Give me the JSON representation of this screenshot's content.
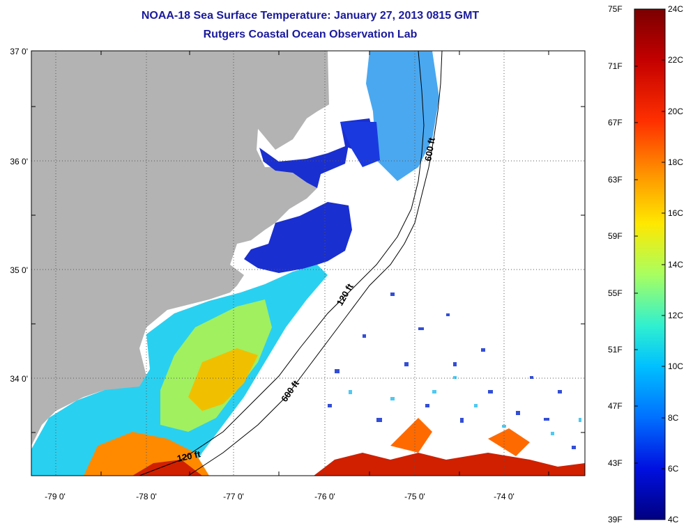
{
  "title": {
    "line1": "NOAA-18 Sea Surface Temperature:  January 27, 2013 0815 GMT",
    "line2": "Rutgers Coastal Ocean Observation Lab"
  },
  "map": {
    "lat_labels": [
      "37 0'",
      "36 0'",
      "35 0'",
      "34 0'"
    ],
    "lon_labels": [
      "-79 0'",
      "-78 0'",
      "-77 0'",
      "-76 0'",
      "-75 0'",
      "-74 0'"
    ],
    "isobath_labels": [
      "600 ft",
      "120 ft",
      "600 ft",
      "120 ft"
    ],
    "colors": {
      "land": "#b3b3b3",
      "grid": "#555555",
      "title": "#1a1a9c"
    }
  },
  "colorbar": {
    "fahrenheit": [
      "75F",
      "71F",
      "67F",
      "63F",
      "59F",
      "55F",
      "51F",
      "47F",
      "43F",
      "39F"
    ],
    "celsius": [
      "24C",
      "22C",
      "20C",
      "18C",
      "16C",
      "14C",
      "12C",
      "10C",
      "8C",
      "6C",
      "4C"
    ],
    "colors": [
      "#7a0000",
      "#e80000",
      "#ff7800",
      "#ffe800",
      "#8cff70",
      "#00d8ff",
      "#0070ff",
      "#0000b0"
    ]
  }
}
